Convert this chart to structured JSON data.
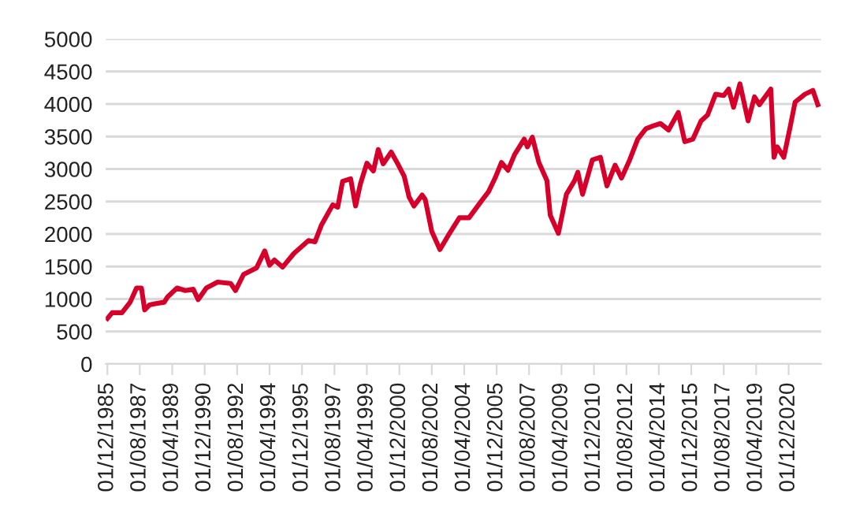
{
  "chart_data": {
    "type": "line",
    "x": [
      "1985-12",
      "1986-03",
      "1986-09",
      "1987-02",
      "1987-06",
      "1987-09",
      "1987-11",
      "1988-02",
      "1988-06",
      "1988-11",
      "1989-01",
      "1989-07",
      "1989-12",
      "1990-05",
      "1990-08",
      "1991-01",
      "1991-08",
      "1992-04",
      "1992-07",
      "1992-12",
      "1993-08",
      "1994-01",
      "1994-04",
      "1994-07",
      "1994-12",
      "1995-07",
      "1996-04",
      "1996-08",
      "1996-12",
      "1997-07",
      "1997-10",
      "1998-01",
      "1998-06",
      "1998-09",
      "1998-12",
      "1999-04",
      "1999-08",
      "1999-11",
      "2000-02",
      "2000-07",
      "2000-11",
      "2001-03",
      "2001-06",
      "2001-09",
      "2002-02",
      "2002-04",
      "2002-08",
      "2003-01",
      "2003-06",
      "2004-01",
      "2004-07",
      "2005-02",
      "2005-07",
      "2005-11",
      "2006-03",
      "2006-07",
      "2006-11",
      "2007-05",
      "2007-07",
      "2007-10",
      "2008-02",
      "2008-07",
      "2008-09",
      "2009-02",
      "2009-07",
      "2009-12",
      "2010-02",
      "2010-05",
      "2010-11",
      "2011-04",
      "2011-08",
      "2012-01",
      "2012-05",
      "2012-10",
      "2013-03",
      "2013-08",
      "2013-12",
      "2014-05",
      "2014-10",
      "2015-04",
      "2015-08",
      "2016-01",
      "2016-06",
      "2016-10",
      "2017-03",
      "2017-08",
      "2017-11",
      "2018-02",
      "2018-06",
      "2018-11",
      "2019-03",
      "2019-06",
      "2020-01",
      "2020-03",
      "2020-05",
      "2020-09",
      "2021-01",
      "2021-04",
      "2021-10",
      "2022-03",
      "2022-06"
    ],
    "series": [
      {
        "color": "#d6002a",
        "values": [
          700,
          790,
          790,
          950,
          1170,
          1170,
          830,
          910,
          930,
          950,
          1030,
          1170,
          1130,
          1150,
          990,
          1170,
          1260,
          1240,
          1130,
          1380,
          1480,
          1740,
          1520,
          1600,
          1490,
          1700,
          1900,
          1880,
          2140,
          2450,
          2410,
          2810,
          2850,
          2430,
          2770,
          3090,
          2970,
          3300,
          3080,
          3260,
          3080,
          2890,
          2570,
          2430,
          2600,
          2530,
          2040,
          1760,
          1970,
          2250,
          2250,
          2490,
          2650,
          2860,
          3100,
          2980,
          3220,
          3460,
          3340,
          3490,
          3100,
          2820,
          2290,
          2010,
          2610,
          2820,
          2950,
          2610,
          3140,
          3180,
          2740,
          3060,
          2860,
          3140,
          3460,
          3620,
          3660,
          3700,
          3600,
          3870,
          3420,
          3460,
          3740,
          3830,
          4150,
          4130,
          4230,
          3950,
          4310,
          3740,
          4110,
          3990,
          4230,
          3180,
          3340,
          3180,
          3660,
          4030,
          4150,
          4210,
          3990
        ]
      }
    ],
    "xlim": [
      "1985-11",
      "2022-08"
    ],
    "xticks": [
      {
        "value": "1985-12-01",
        "label": "01/12/1985"
      },
      {
        "value": "1987-08-01",
        "label": "01/08/1987"
      },
      {
        "value": "1989-04-01",
        "label": "01/04/1989"
      },
      {
        "value": "1990-12-01",
        "label": "01/12/1990"
      },
      {
        "value": "1992-08-01",
        "label": "01/08/1992"
      },
      {
        "value": "1994-04-01",
        "label": "01/04/1994"
      },
      {
        "value": "1995-12-01",
        "label": "01/12/1995"
      },
      {
        "value": "1997-08-01",
        "label": "01/08/1997"
      },
      {
        "value": "1999-04-01",
        "label": "01/04/1999"
      },
      {
        "value": "2000-12-01",
        "label": "01/12/2000"
      },
      {
        "value": "2002-08-01",
        "label": "01/08/2002"
      },
      {
        "value": "2004-04-01",
        "label": "01/04/2004"
      },
      {
        "value": "2005-12-01",
        "label": "01/12/2005"
      },
      {
        "value": "2007-08-01",
        "label": "01/08/2007"
      },
      {
        "value": "2009-04-01",
        "label": "01/04/2009"
      },
      {
        "value": "2010-12-01",
        "label": "01/12/2010"
      },
      {
        "value": "2012-08-01",
        "label": "01/08/2012"
      },
      {
        "value": "2014-04-01",
        "label": "01/04/2014"
      },
      {
        "value": "2015-12-01",
        "label": "01/12/2015"
      },
      {
        "value": "2017-08-01",
        "label": "01/08/2017"
      },
      {
        "value": "2019-04-01",
        "label": "01/04/2019"
      },
      {
        "value": "2020-12-01",
        "label": "01/12/2020"
      }
    ],
    "ylim": [
      0,
      5000
    ],
    "yticks": [
      0,
      500,
      1000,
      1500,
      2000,
      2500,
      3000,
      3500,
      4000,
      4500,
      5000
    ],
    "grid": "y",
    "marker": "none",
    "line_style": "solid"
  }
}
